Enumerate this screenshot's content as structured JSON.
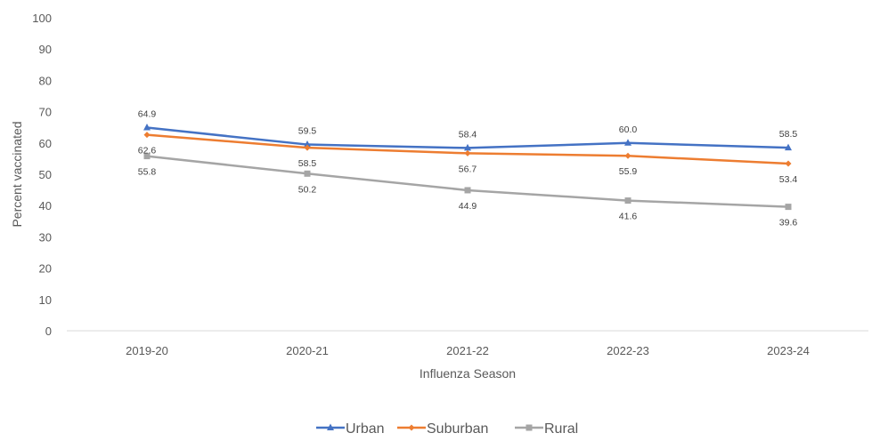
{
  "chart_data": {
    "type": "line",
    "title": "",
    "xlabel": "Influenza Season",
    "ylabel": "Percent vaccinated",
    "categories": [
      "2019-20",
      "2020-21",
      "2021-22",
      "2022-23",
      "2023-24"
    ],
    "ylim": [
      0,
      100
    ],
    "yticks": [
      0,
      10,
      20,
      30,
      40,
      50,
      60,
      70,
      80,
      90,
      100
    ],
    "grid": false,
    "legend_position": "bottom",
    "series": [
      {
        "name": "Urban",
        "values": [
          64.9,
          59.5,
          58.4,
          60.0,
          58.5
        ],
        "labels": [
          "64.9",
          "59.5",
          "58.4",
          "60.0",
          "58.5"
        ],
        "color": "#4472C4",
        "marker": "triangle",
        "label_side": "above"
      },
      {
        "name": "Suburban",
        "values": [
          62.6,
          58.5,
          56.7,
          55.9,
          53.4
        ],
        "labels": [
          "62.6",
          "58.5",
          "56.7",
          "55.9",
          "53.4"
        ],
        "color": "#ED7D31",
        "marker": "diamond",
        "label_side": "below"
      },
      {
        "name": "Rural",
        "values": [
          55.8,
          50.2,
          44.9,
          41.6,
          39.6
        ],
        "labels": [
          "55.8",
          "50.2",
          "44.9",
          "41.6",
          "39.6"
        ],
        "color": "#A5A5A5",
        "marker": "square",
        "label_side": "below"
      }
    ]
  }
}
